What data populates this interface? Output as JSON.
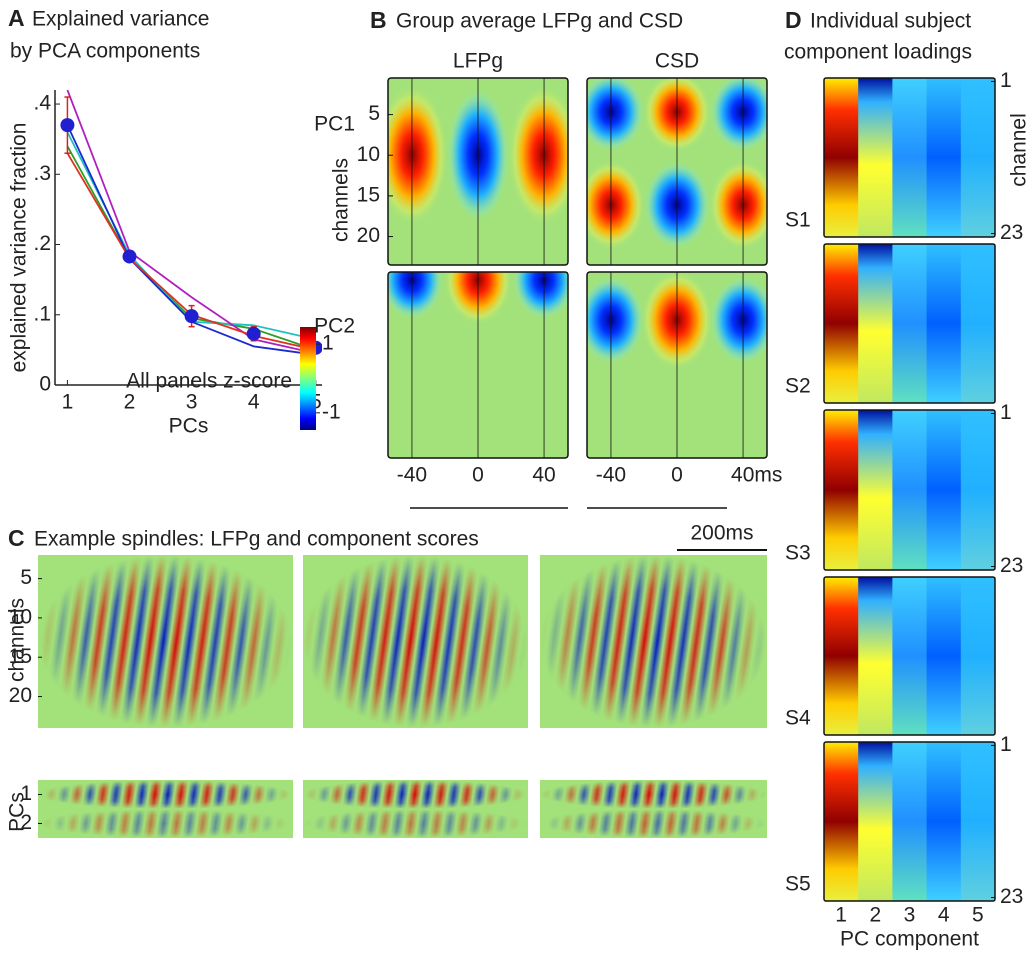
{
  "chart_data": [
    {
      "type": "line",
      "label": "A",
      "title_lines": [
        "Explained variance",
        "by PCA components"
      ],
      "xlabel": "PCs",
      "ylabel": "explained variance fraction",
      "x": [
        1,
        2,
        3,
        4,
        5
      ],
      "xlim": [
        0.8,
        5.1
      ],
      "xticks": [
        1,
        2,
        3,
        4,
        5
      ],
      "ylim": [
        0,
        0.42
      ],
      "yticks": [
        0,
        {
          "value": 0.1,
          "label": ".1"
        },
        {
          "value": 0.2,
          "label": ".2"
        },
        {
          "value": 0.3,
          "label": ".3"
        },
        {
          "value": 0.4,
          "label": ".4"
        }
      ],
      "series": [
        {
          "color": "#2aa02a",
          "values": [
            0.34,
            0.18,
            0.095,
            0.08,
            0.05
          ]
        },
        {
          "color": "#20c0c0",
          "values": [
            0.36,
            0.185,
            0.09,
            0.085,
            0.065
          ]
        },
        {
          "color": "#b020c0",
          "values": [
            0.42,
            0.19,
            0.125,
            0.065,
            0.045
          ]
        },
        {
          "color": "#1a2ad0",
          "values": [
            0.37,
            0.18,
            0.09,
            0.055,
            0.043
          ]
        },
        {
          "color": "#e03020",
          "values": [
            0.33,
            0.18,
            0.1,
            0.07,
            0.05
          ]
        }
      ],
      "mean": {
        "color": "#2020d0",
        "values": [
          0.37,
          0.183,
          0.098,
          0.073,
          0.053
        ],
        "errors": [
          0.04,
          0.005,
          0.015,
          0.01,
          0.005
        ],
        "error_color": "#e02020"
      }
    },
    {
      "type": "colorbar",
      "title": "All panels z-score",
      "ylim": [
        -1.5,
        1.5
      ],
      "yticks": [
        1,
        -1
      ]
    },
    {
      "type": "heatmap",
      "label": "B",
      "title": "Group average LFPg and CSD",
      "columns": [
        "LFPg",
        "CSD"
      ],
      "rows": [
        "PC1",
        "PC2"
      ],
      "ylabel": "channels",
      "ylim": [
        0.5,
        23.5
      ],
      "yticks": [
        5,
        10,
        15,
        20
      ],
      "xlim": [
        -54.5,
        54.5
      ],
      "xticks": [
        [
          -40,
          0,
          40
        ],
        [
          -40,
          0,
          {
            "value": 40,
            "label": "40ms"
          }
        ]
      ]
    },
    {
      "type": "raster",
      "label": "C",
      "title": "Example spindles: LFPg and component scores",
      "scale_bar": "200ms",
      "ylabel": "channels",
      "ylim": [
        2,
        24
      ],
      "yticks": [
        5,
        10,
        15,
        20
      ],
      "pcs_label": "PCs",
      "pcs_ylim": [
        0.5,
        2.5
      ],
      "pcs_yticks": [
        1,
        2
      ]
    },
    {
      "type": "matrix",
      "label": "D",
      "title_lines": [
        "Individual subject",
        "component loadings"
      ],
      "xlabel": "PC component",
      "ylabel": "channel",
      "xlim": [
        0.5,
        5.5
      ],
      "xticks": [
        1,
        2,
        3,
        4,
        5
      ],
      "ylim": [
        0.5,
        23.5
      ],
      "subjects": [
        {
          "name": "S1",
          "yticks": [
            1,
            23
          ]
        },
        {
          "name": "S2"
        },
        {
          "name": "S3",
          "yticks": [
            1,
            23
          ]
        },
        {
          "name": "S4"
        },
        {
          "name": "S5",
          "yticks": [
            1,
            23
          ]
        }
      ]
    }
  ]
}
